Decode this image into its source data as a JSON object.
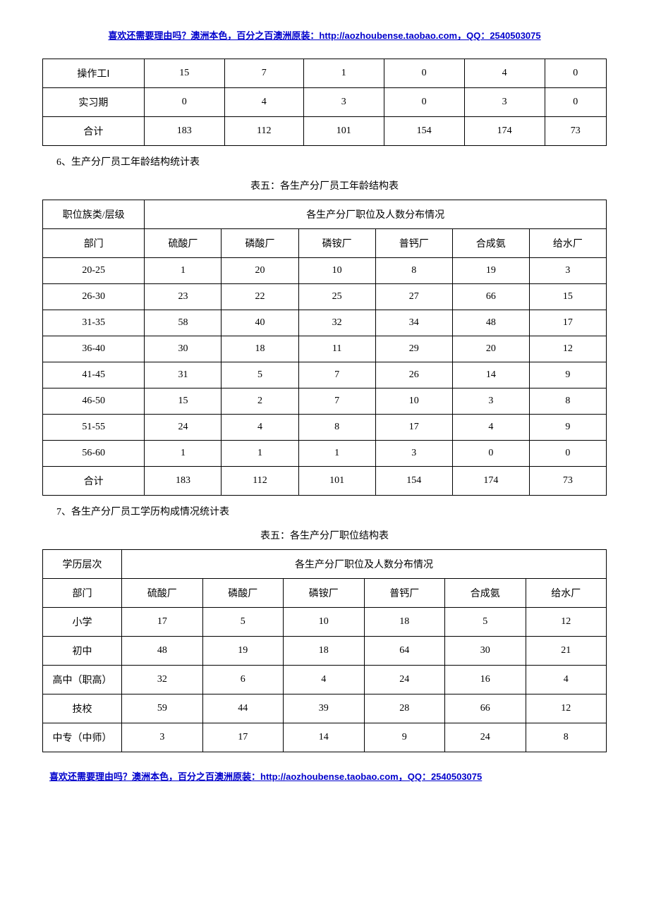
{
  "header_link": "喜欢还需要理由吗？澳洲本色，百分之百澳洲原装：http://aozhoubense.taobao.com，QQ：2540503075",
  "footer_link": "喜欢还需要理由吗？澳洲本色，百分之百澳洲原装：http://aozhoubense.taobao.com，QQ：2540503075",
  "t1": {
    "rows": [
      {
        "label": "操作工Ⅰ",
        "v": [
          "15",
          "7",
          "1",
          "0",
          "4",
          "0"
        ]
      },
      {
        "label": "实习期",
        "v": [
          "0",
          "4",
          "3",
          "0",
          "3",
          "0"
        ]
      },
      {
        "label": "合计",
        "v": [
          "183",
          "112",
          "101",
          "154",
          "174",
          "73"
        ]
      }
    ]
  },
  "s6": {
    "title": "6、生产分厂员工年龄结构统计表",
    "caption": "表五：各生产分厂员工年龄结构表",
    "h1": "职位族类/层级",
    "h2": "各生产分厂职位及人数分布情况",
    "dept": "部门",
    "cols": [
      "硫酸厂",
      "磷酸厂",
      "磷铵厂",
      "普钙厂",
      "合成氨",
      "给水厂"
    ],
    "rows": [
      {
        "label": "20-25",
        "v": [
          "1",
          "20",
          "10",
          "8",
          "19",
          "3"
        ]
      },
      {
        "label": "26-30",
        "v": [
          "23",
          "22",
          "25",
          "27",
          "66",
          "15"
        ]
      },
      {
        "label": "31-35",
        "v": [
          "58",
          "40",
          "32",
          "34",
          "48",
          "17"
        ]
      },
      {
        "label": "36-40",
        "v": [
          "30",
          "18",
          "11",
          "29",
          "20",
          "12"
        ]
      },
      {
        "label": "41-45",
        "v": [
          "31",
          "5",
          "7",
          "26",
          "14",
          "9"
        ]
      },
      {
        "label": "46-50",
        "v": [
          "15",
          "2",
          "7",
          "10",
          "3",
          "8"
        ]
      },
      {
        "label": "51-55",
        "v": [
          "24",
          "4",
          "8",
          "17",
          "4",
          "9"
        ]
      },
      {
        "label": "56-60",
        "v": [
          "1",
          "1",
          "1",
          "3",
          "0",
          "0"
        ]
      },
      {
        "label": "合计",
        "v": [
          "183",
          "112",
          "101",
          "154",
          "174",
          "73"
        ]
      }
    ]
  },
  "s7": {
    "title": "7、各生产分厂员工学历构成情况统计表",
    "caption": "表五：各生产分厂职位结构表",
    "h1": "学历层次",
    "h2": "各生产分厂职位及人数分布情况",
    "dept": "部门",
    "cols": [
      "硫酸厂",
      "磷酸厂",
      "磷铵厂",
      "普钙厂",
      "合成氨",
      "给水厂"
    ],
    "rows": [
      {
        "label": "小学",
        "v": [
          "17",
          "5",
          "10",
          "18",
          "5",
          "12"
        ]
      },
      {
        "label": "初中",
        "v": [
          "48",
          "19",
          "18",
          "64",
          "30",
          "21"
        ]
      },
      {
        "label": "高中（职高）",
        "v": [
          "32",
          "6",
          "4",
          "24",
          "16",
          "4"
        ]
      },
      {
        "label": "技校",
        "v": [
          "59",
          "44",
          "39",
          "28",
          "66",
          "12"
        ]
      },
      {
        "label": "中专（中师）",
        "v": [
          "3",
          "17",
          "14",
          "9",
          "24",
          "8"
        ]
      }
    ]
  }
}
